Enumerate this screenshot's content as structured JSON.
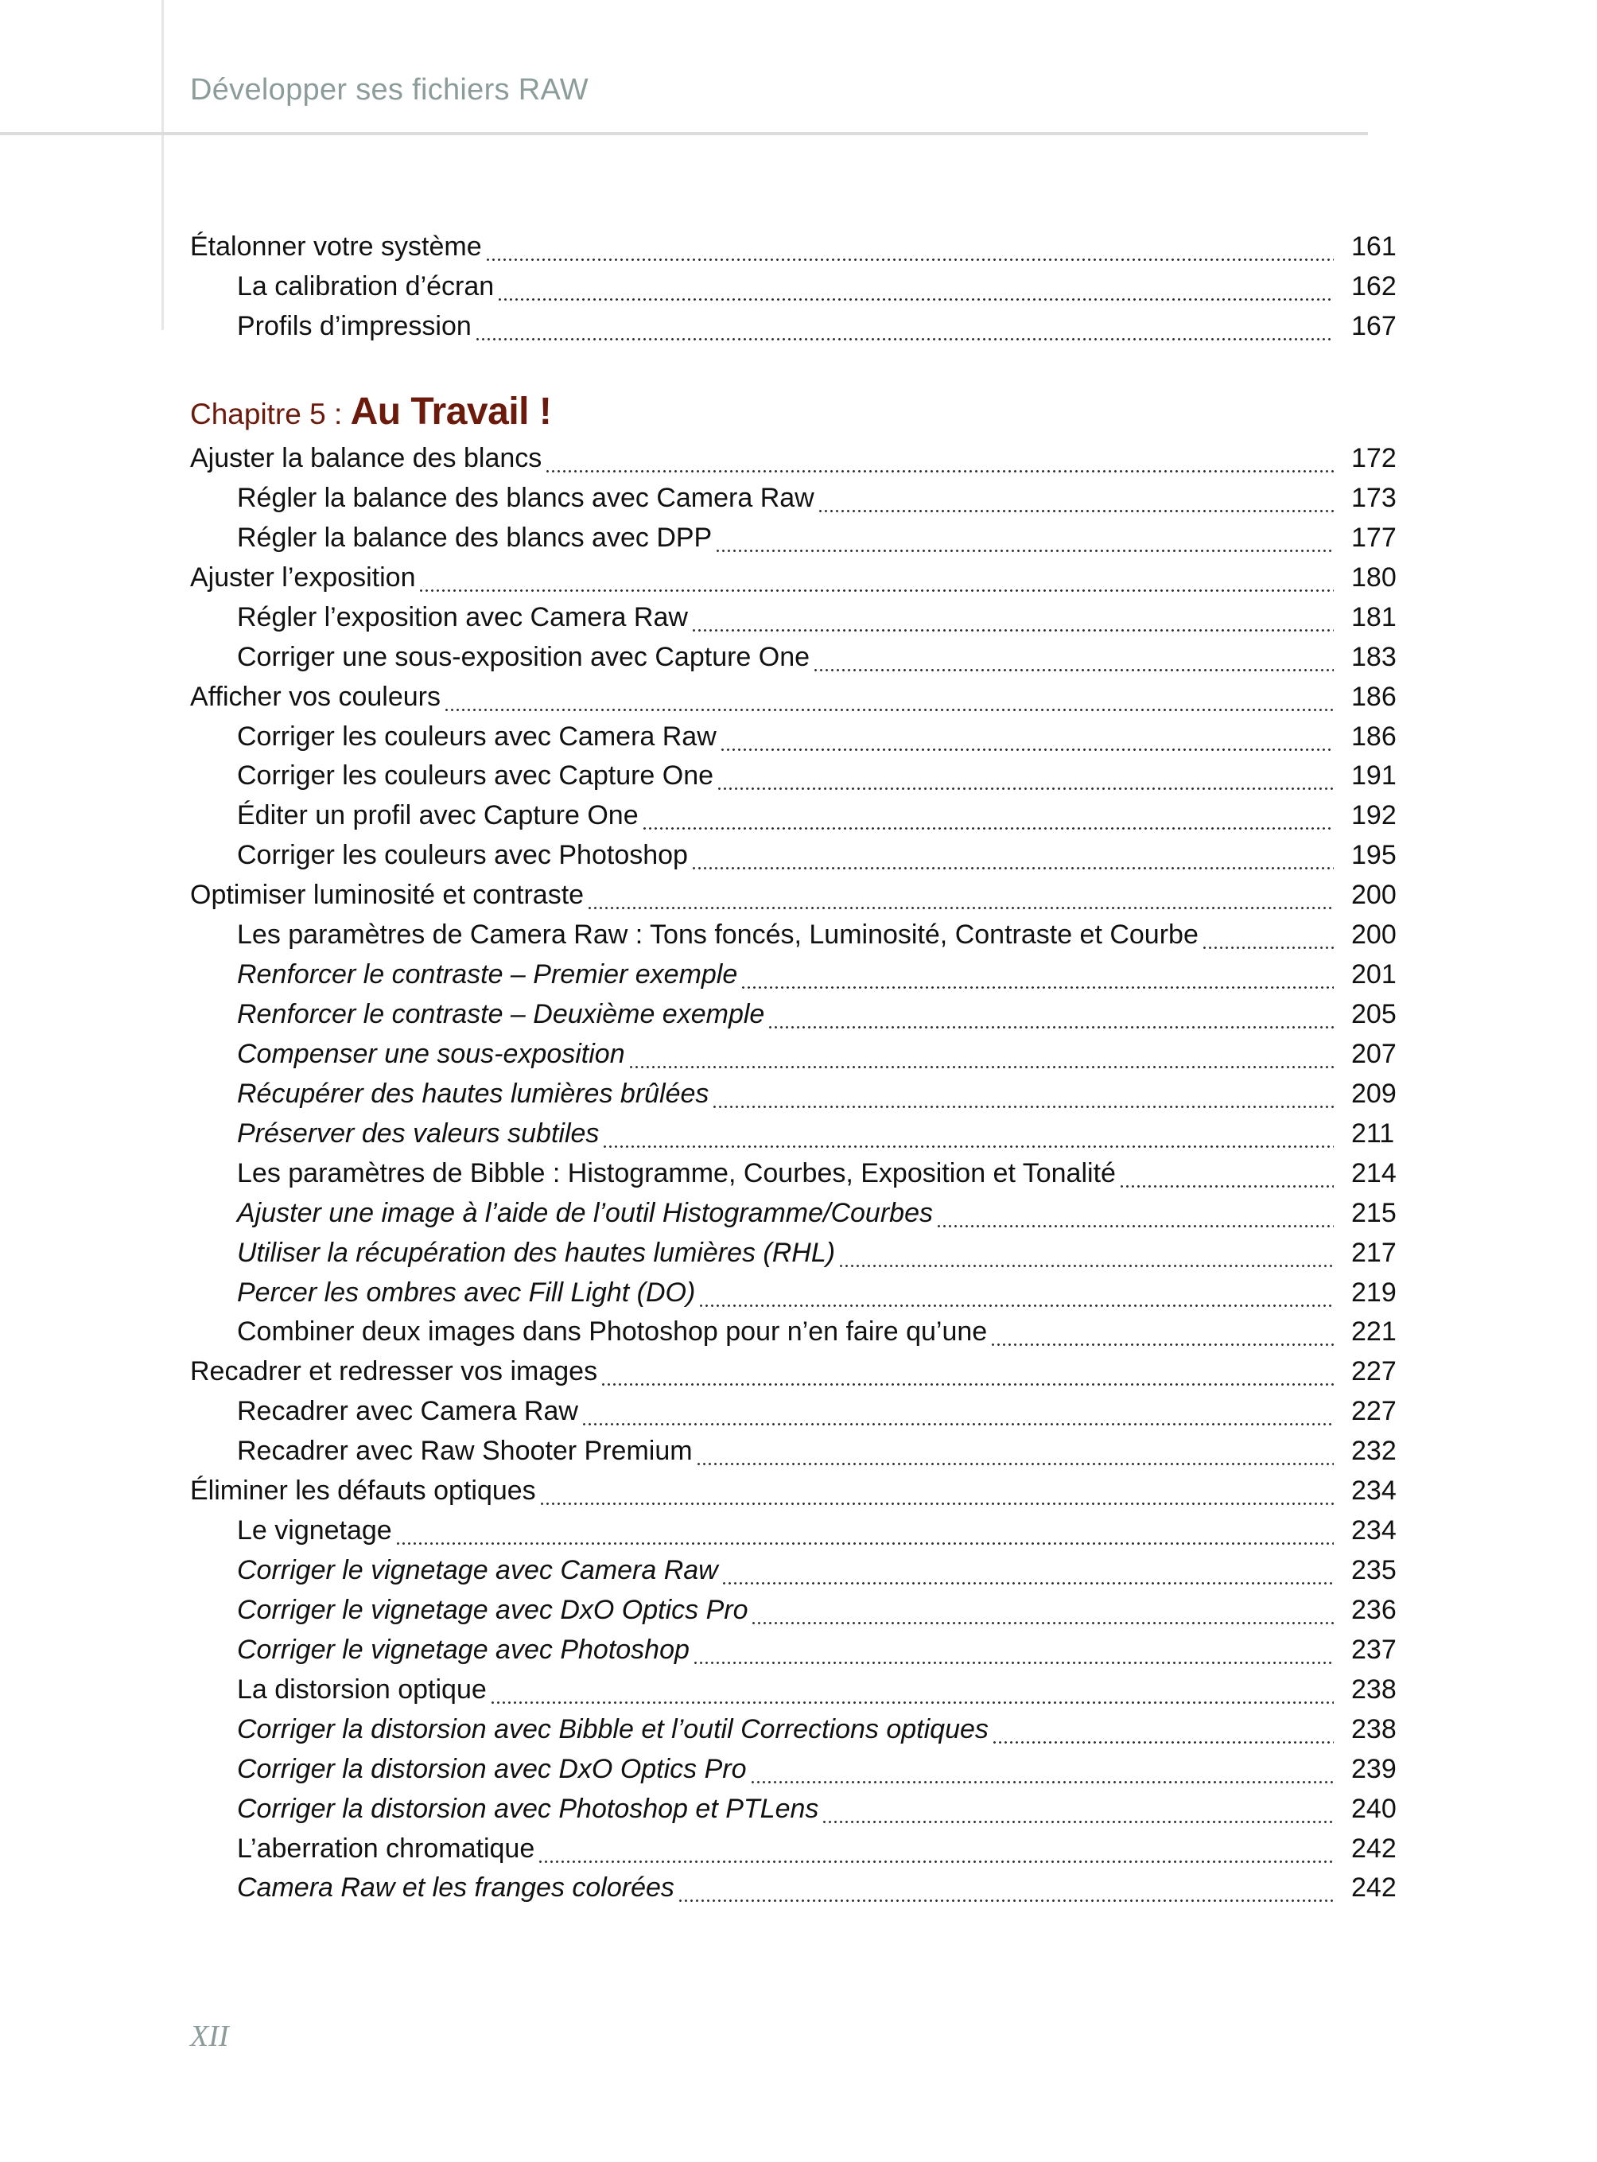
{
  "header": {
    "running_title": "Développer ses fichiers RAW"
  },
  "toc_before": [
    {
      "title": "Étalonner votre système",
      "page": "161",
      "level": 0,
      "italic": false
    },
    {
      "title": "La calibration d’écran",
      "page": "162",
      "level": 1,
      "italic": false
    },
    {
      "title": "Profils d’impression",
      "page": "167",
      "level": 1,
      "italic": false
    }
  ],
  "chapter": {
    "prefix": "Chapitre 5 : ",
    "name": "Au Travail !",
    "color": "#6b1a0c"
  },
  "toc": [
    {
      "title": "Ajuster la balance des blancs",
      "page": "172",
      "level": 0,
      "italic": false
    },
    {
      "title": "Régler la balance des blancs avec Camera Raw",
      "page": "173",
      "level": 1,
      "italic": false
    },
    {
      "title": "Régler la balance des blancs avec DPP",
      "page": "177",
      "level": 1,
      "italic": false
    },
    {
      "title": "Ajuster l’exposition",
      "page": "180",
      "level": 0,
      "italic": false
    },
    {
      "title": "Régler l’exposition avec Camera Raw",
      "page": "181",
      "level": 1,
      "italic": false
    },
    {
      "title": "Corriger une sous-exposition avec Capture One",
      "page": "183",
      "level": 1,
      "italic": false
    },
    {
      "title": "Afficher vos couleurs",
      "page": "186",
      "level": 0,
      "italic": false
    },
    {
      "title": "Corriger les couleurs avec Camera Raw",
      "page": "186",
      "level": 1,
      "italic": false
    },
    {
      "title": "Corriger les couleurs avec Capture One",
      "page": "191",
      "level": 1,
      "italic": false
    },
    {
      "title": "Éditer un profil avec Capture One",
      "page": "192",
      "level": 1,
      "italic": false
    },
    {
      "title": "Corriger les couleurs avec Photoshop",
      "page": "195",
      "level": 1,
      "italic": false
    },
    {
      "title": "Optimiser luminosité et contraste",
      "page": "200",
      "level": 0,
      "italic": false
    },
    {
      "title": "Les paramètres de Camera Raw : Tons foncés, Luminosité, Contraste et Courbe",
      "page": "200",
      "level": 1,
      "italic": false
    },
    {
      "title": "Renforcer le contraste – Premier exemple",
      "page": "201",
      "level": 1,
      "italic": true
    },
    {
      "title": "Renforcer le contraste – Deuxième exemple",
      "page": "205",
      "level": 1,
      "italic": true
    },
    {
      "title": "Compenser une sous-exposition",
      "page": "207",
      "level": 1,
      "italic": true
    },
    {
      "title": "Récupérer des hautes lumières brûlées",
      "page": "209",
      "level": 1,
      "italic": true
    },
    {
      "title": "Préserver des valeurs subtiles",
      "page": "211",
      "level": 1,
      "italic": true
    },
    {
      "title": "Les paramètres de Bibble : Histogramme, Courbes, Exposition et Tonalité",
      "page": "214",
      "level": 1,
      "italic": false
    },
    {
      "title": "Ajuster une image à l’aide de l’outil Histogramme/Courbes",
      "page": "215",
      "level": 1,
      "italic": true
    },
    {
      "title": "Utiliser la récupération des hautes lumières (RHL)",
      "page": "217",
      "level": 1,
      "italic": true
    },
    {
      "title": "Percer les ombres avec Fill Light (DO)",
      "page": "219",
      "level": 1,
      "italic": true
    },
    {
      "title": "Combiner deux images dans Photoshop pour n’en faire qu’une",
      "page": "221",
      "level": 1,
      "italic": false
    },
    {
      "title": "Recadrer et redresser vos images",
      "page": "227",
      "level": 0,
      "italic": false
    },
    {
      "title": "Recadrer avec Camera Raw",
      "page": "227",
      "level": 1,
      "italic": false
    },
    {
      "title": "Recadrer avec Raw Shooter Premium",
      "page": "232",
      "level": 1,
      "italic": false
    },
    {
      "title": "Éliminer les défauts optiques",
      "page": "234",
      "level": 0,
      "italic": false
    },
    {
      "title": "Le vignetage",
      "page": "234",
      "level": 1,
      "italic": false
    },
    {
      "title": "Corriger le vignetage avec Camera Raw",
      "page": "235",
      "level": 1,
      "italic": true
    },
    {
      "title": "Corriger le vignetage avec DxO Optics Pro",
      "page": "236",
      "level": 1,
      "italic": true
    },
    {
      "title": "Corriger le vignetage avec Photoshop",
      "page": "237",
      "level": 1,
      "italic": true
    },
    {
      "title": "La distorsion optique",
      "page": "238",
      "level": 1,
      "italic": false
    },
    {
      "title": "Corriger la distorsion avec Bibble et l’outil Corrections optiques",
      "page": "238",
      "level": 1,
      "italic": true
    },
    {
      "title": "Corriger la distorsion avec DxO Optics Pro",
      "page": "239",
      "level": 1,
      "italic": true
    },
    {
      "title": "Corriger la distorsion avec Photoshop et PTLens",
      "page": "240",
      "level": 1,
      "italic": true
    },
    {
      "title": "L’aberration chromatique",
      "page": "242",
      "level": 1,
      "italic": false
    },
    {
      "title": "Camera Raw et les franges colorées",
      "page": "242",
      "level": 1,
      "italic": true
    }
  ],
  "footer": {
    "folio": "XII"
  }
}
